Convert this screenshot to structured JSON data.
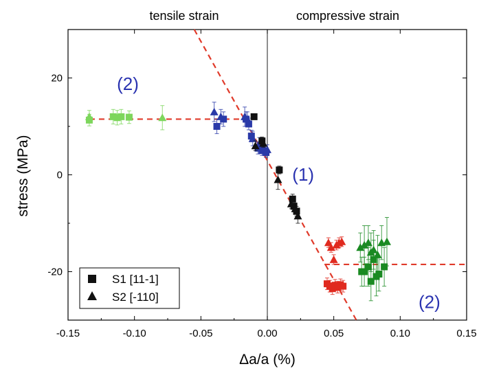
{
  "chart_data": {
    "type": "scatter",
    "xlabel": "Δa/a (%)",
    "ylabel": "stress (MPa)",
    "xlim": [
      -0.15,
      0.15
    ],
    "ylim": [
      -30,
      30
    ],
    "xticks": [
      -0.15,
      -0.1,
      -0.05,
      0.0,
      0.05,
      0.1,
      0.15
    ],
    "xtick_labels": [
      "-0.15",
      "-0.10",
      "-0.05",
      "0.00",
      "0.05",
      "0.10",
      "0.15"
    ],
    "yticks": [
      -20,
      0,
      20
    ],
    "ytick_labels": [
      "-20",
      "0",
      "20"
    ],
    "top_labels": {
      "left": "tensile strain",
      "right": "compressive strain"
    },
    "annotations": [
      {
        "text": "(2)",
        "x": -0.105,
        "y": 17.5
      },
      {
        "text": "(1)",
        "x": 0.027,
        "y": -1.2
      },
      {
        "text": "(2)",
        "x": 0.122,
        "y": -27.5
      }
    ],
    "legend": {
      "position": "bottom-left",
      "entries": [
        {
          "label": "S1 [11-1]",
          "marker": "square"
        },
        {
          "label": "S2 [-110]",
          "marker": "triangle"
        }
      ]
    },
    "colors": {
      "black": "#111111",
      "blue": "#2a3aa8",
      "green": "#1a8a22",
      "light_green": "#7dd65c",
      "red": "#e02a1f",
      "fit_line": "#e03a2a",
      "annotation": "#2a33b0"
    },
    "fit_lines": [
      {
        "points": [
          [
            -0.134,
            11.5
          ],
          [
            -0.012,
            11.5
          ]
        ]
      },
      {
        "points": [
          [
            -0.055,
            30
          ],
          [
            0.067,
            -30
          ]
        ]
      },
      {
        "points": [
          [
            0.043,
            -18.5
          ],
          [
            0.15,
            -18.5
          ]
        ]
      }
    ],
    "series": [
      {
        "marker": "square",
        "color": "light_green",
        "points": [
          [
            -0.134,
            11.3,
            1.2
          ],
          [
            -0.116,
            12.0,
            1.5
          ],
          [
            -0.113,
            11.8,
            1.5
          ],
          [
            -0.11,
            12.0,
            1.5
          ],
          [
            -0.104,
            11.9,
            1.3
          ]
        ]
      },
      {
        "marker": "triangle",
        "color": "light_green",
        "points": [
          [
            -0.134,
            12.0,
            1.3
          ],
          [
            -0.079,
            11.8,
            2.5
          ]
        ]
      },
      {
        "marker": "square",
        "color": "blue",
        "points": [
          [
            -0.038,
            10.0,
            1.5
          ],
          [
            -0.033,
            11.5,
            1.5
          ],
          [
            -0.016,
            11.5,
            1.5
          ],
          [
            -0.014,
            10.5,
            1.2
          ],
          [
            -0.012,
            8.0,
            1.2
          ],
          [
            -0.007,
            5.5,
            1.2
          ],
          [
            -0.004,
            5.0,
            1.0
          ],
          [
            -0.001,
            4.6,
            1.0
          ]
        ]
      },
      {
        "marker": "triangle",
        "color": "blue",
        "points": [
          [
            -0.04,
            13.0,
            2.0
          ],
          [
            -0.035,
            12.0,
            1.5
          ],
          [
            -0.017,
            12.0,
            2.0
          ],
          [
            -0.015,
            11.5,
            1.5
          ],
          [
            -0.011,
            7.5,
            1.5
          ],
          [
            -0.006,
            6.5,
            1.2
          ],
          [
            -0.003,
            5.8,
            1.0
          ],
          [
            0.0,
            5.2,
            1.0
          ]
        ]
      },
      {
        "marker": "square",
        "color": "black",
        "points": [
          [
            -0.01,
            12.0,
            0.5
          ],
          [
            -0.004,
            7.0,
            0.8
          ],
          [
            0.009,
            1.0,
            0.8
          ],
          [
            0.019,
            -5.0,
            1.0
          ],
          [
            0.02,
            -6.5,
            1.0
          ],
          [
            0.022,
            -7.5,
            1.0
          ]
        ]
      },
      {
        "marker": "triangle",
        "color": "black",
        "points": [
          [
            -0.009,
            6.0,
            1.0
          ],
          [
            -0.003,
            6.5,
            0.8
          ],
          [
            0.008,
            -1.0,
            2.0
          ],
          [
            0.018,
            -6.0,
            1.0
          ],
          [
            0.021,
            -7.0,
            1.2
          ],
          [
            0.023,
            -8.5,
            1.5
          ]
        ]
      },
      {
        "marker": "square",
        "color": "red",
        "points": [
          [
            0.045,
            -22.5,
            1.2
          ],
          [
            0.047,
            -23.0,
            1.2
          ],
          [
            0.049,
            -23.5,
            1.2
          ],
          [
            0.051,
            -22.8,
            1.2
          ],
          [
            0.053,
            -23.2,
            1.2
          ],
          [
            0.055,
            -22.7,
            1.2
          ],
          [
            0.057,
            -23.0,
            1.2
          ]
        ]
      },
      {
        "marker": "triangle",
        "color": "red",
        "points": [
          [
            0.046,
            -14.0,
            1.0
          ],
          [
            0.048,
            -15.0,
            1.0
          ],
          [
            0.05,
            -17.5,
            1.0
          ],
          [
            0.052,
            -14.5,
            1.0
          ],
          [
            0.054,
            -14.0,
            1.0
          ],
          [
            0.056,
            -13.8,
            1.0
          ]
        ]
      },
      {
        "marker": "square",
        "color": "green",
        "points": [
          [
            0.071,
            -20.0,
            3.0
          ],
          [
            0.073,
            -20.0,
            3.0
          ],
          [
            0.076,
            -19.0,
            4.0
          ],
          [
            0.078,
            -22.0,
            4.0
          ],
          [
            0.08,
            -17.5,
            4.0
          ],
          [
            0.082,
            -21.0,
            4.0
          ],
          [
            0.084,
            -20.5,
            3.5
          ],
          [
            0.088,
            -19.0,
            4.0
          ]
        ]
      },
      {
        "marker": "triangle",
        "color": "green",
        "points": [
          [
            0.07,
            -15.0,
            3.0
          ],
          [
            0.073,
            -14.5,
            4.0
          ],
          [
            0.076,
            -14.0,
            3.5
          ],
          [
            0.078,
            -16.0,
            4.0
          ],
          [
            0.08,
            -15.5,
            4.0
          ],
          [
            0.083,
            -16.5,
            4.0
          ],
          [
            0.086,
            -14.0,
            3.5
          ],
          [
            0.09,
            -13.8,
            5.0
          ]
        ]
      }
    ]
  }
}
